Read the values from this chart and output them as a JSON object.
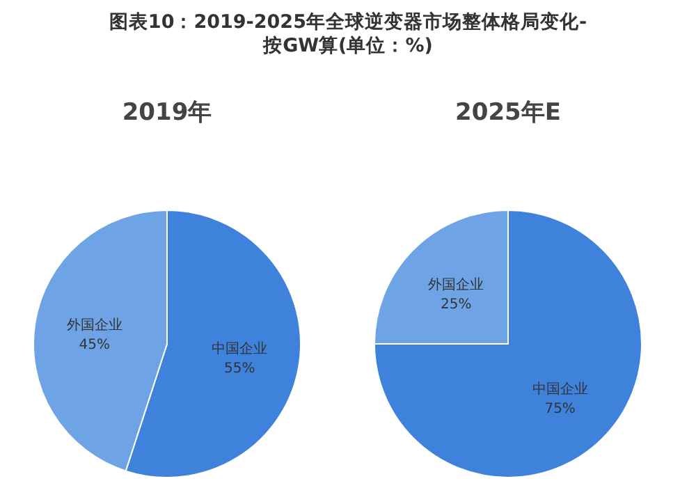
{
  "chart_data": [
    {
      "type": "pie",
      "title": "图表10：2019-2025年全球逆变器市场整体格局变化-按GW算(单位：%)",
      "subtitle": "2019年",
      "categories": [
        "中国企业",
        "外国企业"
      ],
      "values": [
        55,
        45
      ],
      "colors": [
        "#3f82dc",
        "#6ea3e6"
      ],
      "value_labels": [
        "55%",
        "45%"
      ]
    },
    {
      "type": "pie",
      "subtitle": "2025年E",
      "categories": [
        "中国企业",
        "外国企业"
      ],
      "values": [
        75,
        25
      ],
      "colors": [
        "#3f82dc",
        "#6ea3e6"
      ],
      "value_labels": [
        "75%",
        "25%"
      ]
    }
  ]
}
